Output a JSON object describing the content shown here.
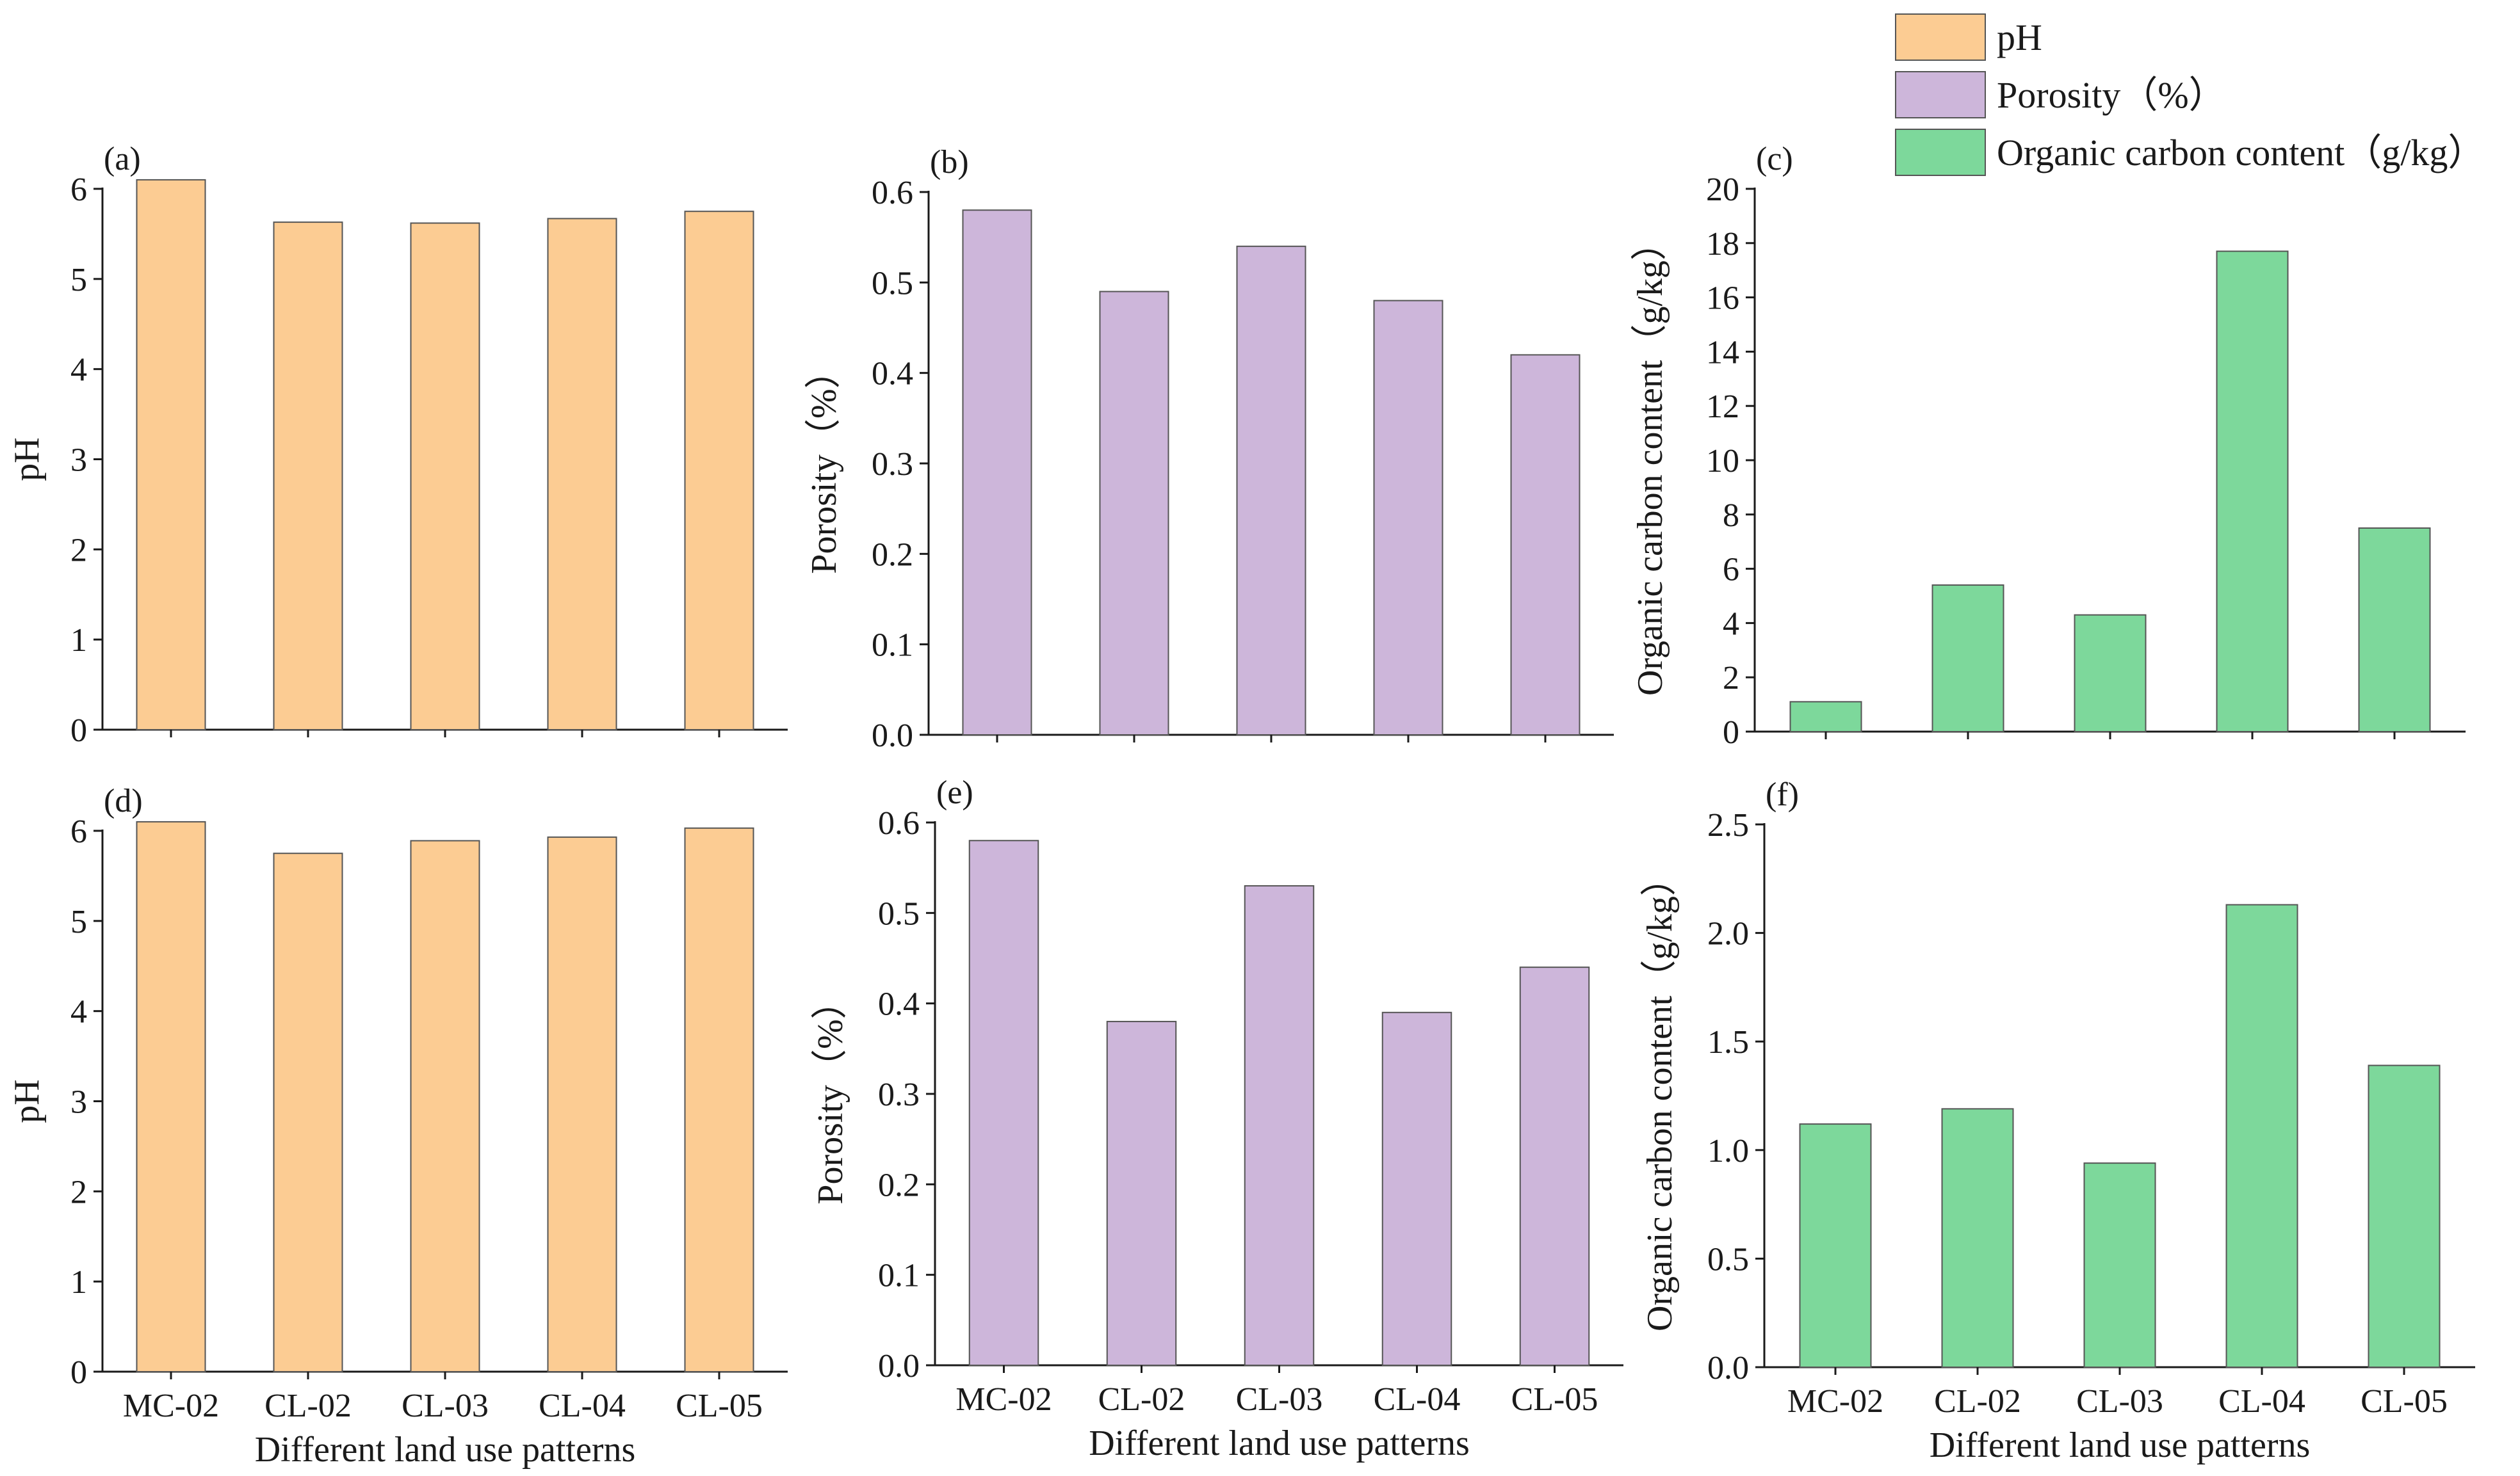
{
  "colors": {
    "pH": "#fccc93",
    "Porosity": "#cdb6da",
    "Organic carbon content": "#7dd89b",
    "axis": "#1a1a1a"
  },
  "legend": {
    "placement": "top-right",
    "items": [
      {
        "label": "pH",
        "color_key": "pH"
      },
      {
        "label": "Porosity（%）",
        "color_key": "Porosity"
      },
      {
        "label": "Organic carbon content（g/kg）",
        "color_key": "Organic carbon content"
      }
    ]
  },
  "chart_data": [
    {
      "type": "bar",
      "tag": "(a)",
      "series_key": "pH",
      "categories": [
        "MC-02",
        "CL-02",
        "CL-03",
        "CL-04",
        "CL-05"
      ],
      "values": [
        6.1,
        5.63,
        5.62,
        5.67,
        5.75
      ],
      "ylabel": "pH",
      "xlabel": "",
      "ylim": [
        0,
        6
      ],
      "yticks": [
        "0",
        "1",
        "2",
        "3",
        "4",
        "5",
        "6"
      ],
      "show_xticks": false
    },
    {
      "type": "bar",
      "tag": "(b)",
      "series_key": "Porosity",
      "categories": [
        "MC-02",
        "CL-02",
        "CL-03",
        "CL-04",
        "CL-05"
      ],
      "values": [
        0.58,
        0.49,
        0.54,
        0.48,
        0.42
      ],
      "ylabel": "Porosity（%）",
      "xlabel": "",
      "ylim": [
        0,
        0.6
      ],
      "yticks": [
        "0.0",
        "0.1",
        "0.2",
        "0.3",
        "0.4",
        "0.5",
        "0.6"
      ],
      "show_xticks": false
    },
    {
      "type": "bar",
      "tag": "(c)",
      "series_key": "Organic carbon content",
      "categories": [
        "MC-02",
        "CL-02",
        "CL-03",
        "CL-04",
        "CL-05"
      ],
      "values": [
        1.1,
        5.4,
        4.3,
        17.7,
        7.5
      ],
      "ylabel": "Organic carbon content（g/kg）",
      "xlabel": "",
      "ylim": [
        0,
        20
      ],
      "yticks": [
        "0",
        "2",
        "4",
        "6",
        "8",
        "10",
        "12",
        "14",
        "16",
        "18",
        "20"
      ],
      "show_xticks": false
    },
    {
      "type": "bar",
      "tag": "(d)",
      "series_key": "pH",
      "categories": [
        "MC-02",
        "CL-02",
        "CL-03",
        "CL-04",
        "CL-05"
      ],
      "values": [
        6.1,
        5.75,
        5.89,
        5.93,
        6.03
      ],
      "ylabel": "pH",
      "xlabel": "Different land use patterns",
      "ylim": [
        0,
        6
      ],
      "yticks": [
        "0",
        "1",
        "2",
        "3",
        "4",
        "5",
        "6"
      ],
      "show_xticks": true
    },
    {
      "type": "bar",
      "tag": "(e)",
      "series_key": "Porosity",
      "categories": [
        "MC-02",
        "CL-02",
        "CL-03",
        "CL-04",
        "CL-05"
      ],
      "values": [
        0.58,
        0.38,
        0.53,
        0.39,
        0.44
      ],
      "ylabel": "Porosity（%）",
      "xlabel": "Different land use patterns",
      "ylim": [
        0,
        0.6
      ],
      "yticks": [
        "0.0",
        "0.1",
        "0.2",
        "0.3",
        "0.4",
        "0.5",
        "0.6"
      ],
      "show_xticks": true
    },
    {
      "type": "bar",
      "tag": "(f)",
      "series_key": "Organic carbon content",
      "categories": [
        "MC-02",
        "CL-02",
        "CL-03",
        "CL-04",
        "CL-05"
      ],
      "values": [
        1.12,
        1.19,
        0.94,
        2.13,
        1.39
      ],
      "ylabel": "Organic carbon content（g/kg）",
      "xlabel": "Different land use patterns",
      "ylim": [
        0,
        2.5
      ],
      "yticks": [
        "0.0",
        "0.5",
        "1.0",
        "1.5",
        "2.0",
        "2.5"
      ],
      "show_xticks": true
    }
  ]
}
